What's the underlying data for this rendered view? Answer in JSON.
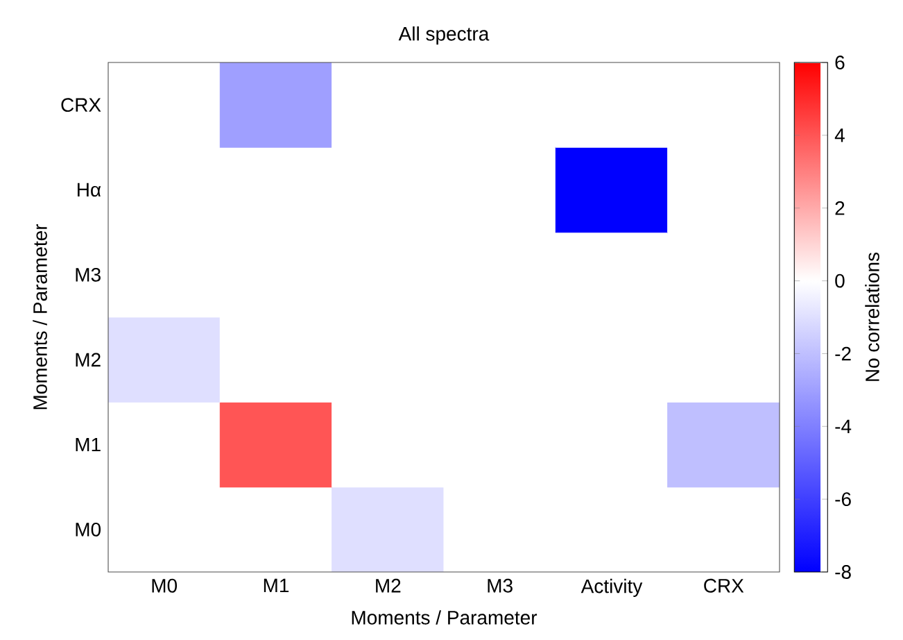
{
  "chart_data": {
    "type": "heatmap",
    "title": "All spectra",
    "xlabel": "Moments / Parameter",
    "ylabel": "Moments / Parameter",
    "clabel": "No correlations",
    "categories": [
      "M0",
      "M1",
      "M2",
      "M3",
      "Activity",
      "CRX"
    ],
    "y_categories": [
      "CRX",
      "Hα",
      "M3",
      "M2",
      "M1",
      "M0"
    ],
    "cells": [
      [
        0,
        -3,
        0,
        0,
        0,
        0
      ],
      [
        0,
        0,
        0,
        0,
        -8,
        0
      ],
      [
        0,
        0,
        0,
        0,
        0,
        0
      ],
      [
        -1,
        0,
        0,
        0,
        0,
        0
      ],
      [
        0,
        4,
        0,
        0,
        0,
        -2
      ],
      [
        0,
        0,
        -1,
        0,
        0,
        0
      ]
    ],
    "clim": [
      -8,
      6
    ],
    "cticks": [
      -8,
      -6,
      -4,
      -2,
      0,
      2,
      4,
      6
    ]
  }
}
